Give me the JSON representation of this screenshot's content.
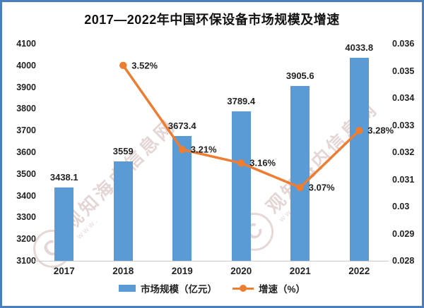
{
  "title": "2017—2022年中国环保设备市场规模及增速",
  "legend": {
    "items": [
      {
        "label": "市场规模（亿元）",
        "type": "bar"
      },
      {
        "label": "增速（%）",
        "type": "line"
      }
    ]
  },
  "watermark": {
    "logo": "C",
    "text": "观知海内信息网",
    "subtext": "www."
  },
  "colors": {
    "bar": "#5B9BD5",
    "line": "#ED7D31",
    "border": "#4a7ebd",
    "axis_line": "#c9c9c9",
    "text": "#222222"
  },
  "chart_data": {
    "type": "bar",
    "subtype": "bar+line-combo",
    "title": "2017—2022年中国环保设备市场规模及增速",
    "categories": [
      "2017",
      "2018",
      "2019",
      "2020",
      "2021",
      "2022"
    ],
    "series": [
      {
        "name": "市场规模（亿元）",
        "type": "bar",
        "axis": "left",
        "color": "#5B9BD5",
        "values": [
          3438.1,
          3559,
          3673.4,
          3789.4,
          3905.6,
          4033.8
        ],
        "labels": [
          "3438.1",
          "3559",
          "3673.4",
          "3789.4",
          "3905.6",
          "4033.8"
        ]
      },
      {
        "name": "增速（%）",
        "type": "line",
        "axis": "right",
        "color": "#ED7D31",
        "values": [
          null,
          0.0352,
          0.0321,
          0.0316,
          0.0307,
          0.0328
        ],
        "labels": [
          null,
          "3.52%",
          "3.21%",
          "3.16%",
          "3.07%",
          "3.28%"
        ]
      }
    ],
    "left_axis": {
      "min": 3100,
      "max": 4100,
      "step": 100,
      "ticks": [
        "4100",
        "4000",
        "3900",
        "3800",
        "3700",
        "3600",
        "3500",
        "3400",
        "3300",
        "3200",
        "3100"
      ]
    },
    "right_axis": {
      "min": 0.028,
      "max": 0.036,
      "step": 0.001,
      "ticks": [
        "0.036",
        "0.035",
        "0.034",
        "0.033",
        "0.032",
        "0.031",
        "0.03",
        "0.029",
        "0.028"
      ]
    },
    "grid": false,
    "legend_position": "bottom"
  }
}
